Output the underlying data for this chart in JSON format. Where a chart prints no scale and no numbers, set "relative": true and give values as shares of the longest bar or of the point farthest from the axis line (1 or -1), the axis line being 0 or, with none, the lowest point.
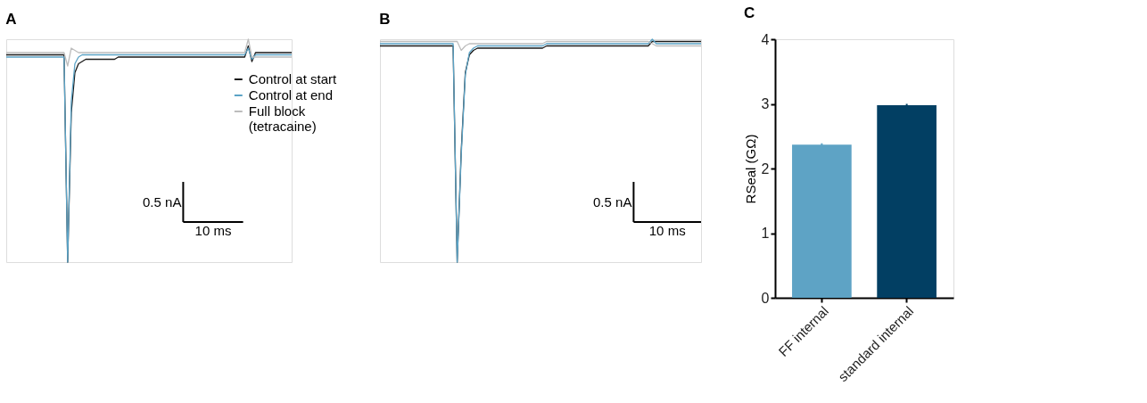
{
  "chart_data": [
    {
      "type": "line",
      "title": "A",
      "relative": true,
      "legend": "right",
      "grid": false,
      "line_style": "solid",
      "marker": "none",
      "categories": [
        null,
        null,
        null,
        null,
        null,
        null,
        null,
        null,
        null,
        null,
        null,
        null,
        null,
        null,
        null,
        null,
        null,
        null,
        null,
        null,
        null,
        null,
        null,
        null,
        null,
        null,
        null,
        null,
        null,
        null,
        null,
        null,
        null,
        null,
        null,
        null,
        null,
        null,
        null,
        null,
        null,
        null,
        null,
        null,
        null,
        null,
        null,
        null,
        null,
        null,
        null,
        null,
        null,
        null,
        null,
        null,
        null,
        null,
        null,
        null,
        null,
        null,
        null,
        null,
        null,
        null,
        null,
        null,
        null,
        null,
        null,
        null,
        null,
        null,
        null,
        null,
        null,
        null,
        null,
        null
      ],
      "series": [
        {
          "name": "Control at start",
          "color": "#1a1a1a",
          "values": [
            0.93,
            0.93,
            0.93,
            0.93,
            0.93,
            0.93,
            0.93,
            0.93,
            0.93,
            0.93,
            0.93,
            0.93,
            0.93,
            0.93,
            0.93,
            0.93,
            0.93,
            0,
            0.67,
            0.85,
            0.89,
            0.9,
            0.91,
            0.91,
            0.91,
            0.91,
            0.91,
            0.91,
            0.91,
            0.91,
            0.91,
            0.92,
            0.92,
            0.92,
            0.92,
            0.92,
            0.92,
            0.92,
            0.92,
            0.92,
            0.92,
            0.92,
            0.92,
            0.92,
            0.92,
            0.92,
            0.92,
            0.92,
            0.92,
            0.92,
            0.92,
            0.92,
            0.92,
            0.92,
            0.92,
            0.92,
            0.92,
            0.92,
            0.92,
            0.92,
            0.92,
            0.92,
            0.92,
            0.92,
            0.92,
            0.92,
            0.92,
            0.97,
            0.9,
            0.94,
            0.94,
            0.94,
            0.94,
            0.94,
            0.94,
            0.94,
            0.94,
            0.94,
            0.94,
            0.94
          ]
        },
        {
          "name": "Control at end",
          "color": "#5ba3c6",
          "values": [
            0.92,
            0.92,
            0.92,
            0.92,
            0.92,
            0.92,
            0.92,
            0.92,
            0.92,
            0.92,
            0.92,
            0.92,
            0.92,
            0.92,
            0.92,
            0.92,
            0.92,
            0,
            0.72,
            0.89,
            0.92,
            0.93,
            0.93,
            0.93,
            0.93,
            0.93,
            0.93,
            0.93,
            0.93,
            0.93,
            0.93,
            0.93,
            0.93,
            0.93,
            0.93,
            0.93,
            0.93,
            0.93,
            0.93,
            0.93,
            0.93,
            0.93,
            0.93,
            0.93,
            0.93,
            0.93,
            0.93,
            0.93,
            0.93,
            0.93,
            0.93,
            0.93,
            0.93,
            0.93,
            0.93,
            0.93,
            0.93,
            0.93,
            0.93,
            0.93,
            0.93,
            0.93,
            0.93,
            0.93,
            0.93,
            0.93,
            0.93,
            0.96,
            0.91,
            0.93,
            0.93,
            0.93,
            0.93,
            0.93,
            0.93,
            0.93,
            0.93,
            0.93,
            0.93,
            0.93
          ]
        },
        {
          "name": "Full block\n(tetracaine)",
          "color": "#bdbdbd",
          "values": [
            0.94,
            0.94,
            0.94,
            0.94,
            0.94,
            0.94,
            0.94,
            0.94,
            0.94,
            0.94,
            0.94,
            0.94,
            0.94,
            0.94,
            0.94,
            0.94,
            0.94,
            0.88,
            0.96,
            0.95,
            0.94,
            0.94,
            0.94,
            0.94,
            0.94,
            0.94,
            0.94,
            0.94,
            0.94,
            0.94,
            0.94,
            0.94,
            0.94,
            0.94,
            0.94,
            0.94,
            0.94,
            0.94,
            0.94,
            0.94,
            0.94,
            0.94,
            0.94,
            0.94,
            0.94,
            0.94,
            0.94,
            0.94,
            0.94,
            0.94,
            0.94,
            0.94,
            0.94,
            0.94,
            0.94,
            0.94,
            0.94,
            0.94,
            0.94,
            0.94,
            0.94,
            0.94,
            0.94,
            0.94,
            0.94,
            0.94,
            0.94,
            1,
            0.92,
            0.92,
            0.92,
            0.92,
            0.92,
            0.92,
            0.92,
            0.92,
            0.92,
            0.92,
            0.92,
            0.92
          ]
        }
      ],
      "annotations": [
        "0.5 nA",
        "10 ms"
      ]
    },
    {
      "type": "line",
      "title": "B",
      "relative": true,
      "grid": false,
      "line_style": "solid",
      "marker": "none",
      "categories": [
        null,
        null,
        null,
        null,
        null,
        null,
        null,
        null,
        null,
        null,
        null,
        null,
        null,
        null,
        null,
        null,
        null,
        null,
        null,
        null,
        null,
        null,
        null,
        null,
        null,
        null,
        null,
        null,
        null,
        null,
        null,
        null,
        null,
        null,
        null,
        null,
        null,
        null,
        null,
        null,
        null,
        null,
        null,
        null,
        null,
        null,
        null,
        null,
        null,
        null,
        null,
        null,
        null,
        null,
        null,
        null,
        null,
        null,
        null,
        null,
        null,
        null,
        null,
        null,
        null,
        null,
        null,
        null,
        null,
        null,
        null,
        null,
        null,
        null,
        null,
        null,
        null,
        null,
        null,
        null
      ],
      "series": [
        {
          "color": "#1a1a1a",
          "values": [
            0.97,
            0.97,
            0.97,
            0.97,
            0.97,
            0.97,
            0.97,
            0.97,
            0.97,
            0.97,
            0.97,
            0.97,
            0.97,
            0.97,
            0.97,
            0.97,
            0.97,
            0.97,
            0.97,
            0,
            0.5,
            0.85,
            0.93,
            0.95,
            0.96,
            0.96,
            0.96,
            0.96,
            0.96,
            0.96,
            0.96,
            0.96,
            0.96,
            0.96,
            0.96,
            0.96,
            0.96,
            0.96,
            0.96,
            0.96,
            0.96,
            0.97,
            0.97,
            0.97,
            0.97,
            0.97,
            0.97,
            0.97,
            0.97,
            0.97,
            0.97,
            0.97,
            0.97,
            0.97,
            0.97,
            0.97,
            0.97,
            0.97,
            0.97,
            0.97,
            0.97,
            0.97,
            0.97,
            0.97,
            0.97,
            0.97,
            0.97,
            0.99,
            0.99,
            0.99,
            0.99,
            0.99,
            0.99,
            0.99,
            0.99,
            0.99,
            0.99,
            0.99,
            0.99,
            0.99
          ]
        },
        {
          "color": "#5ba3c6",
          "values": [
            0.98,
            0.98,
            0.98,
            0.98,
            0.98,
            0.98,
            0.98,
            0.98,
            0.98,
            0.98,
            0.98,
            0.98,
            0.98,
            0.98,
            0.98,
            0.98,
            0.98,
            0.98,
            0.98,
            0,
            0.48,
            0.84,
            0.94,
            0.96,
            0.97,
            0.97,
            0.97,
            0.97,
            0.97,
            0.97,
            0.97,
            0.97,
            0.97,
            0.97,
            0.97,
            0.97,
            0.97,
            0.97,
            0.97,
            0.97,
            0.97,
            0.98,
            0.98,
            0.98,
            0.98,
            0.98,
            0.98,
            0.98,
            0.98,
            0.98,
            0.98,
            0.98,
            0.98,
            0.98,
            0.98,
            0.98,
            0.98,
            0.98,
            0.98,
            0.98,
            0.98,
            0.98,
            0.98,
            0.98,
            0.98,
            0.98,
            0.98,
            1,
            0.98,
            0.98,
            0.98,
            0.98,
            0.98,
            0.98,
            0.98,
            0.98,
            0.98,
            0.98,
            0.98,
            0.98
          ]
        },
        {
          "color": "#bdbdbd",
          "values": [
            0.99,
            0.99,
            0.99,
            0.99,
            0.99,
            0.99,
            0.99,
            0.99,
            0.99,
            0.99,
            0.99,
            0.99,
            0.99,
            0.99,
            0.99,
            0.99,
            0.99,
            0.99,
            0.99,
            0.99,
            0.95,
            0.97,
            0.98,
            0.98,
            0.98,
            0.98,
            0.98,
            0.98,
            0.98,
            0.98,
            0.98,
            0.98,
            0.98,
            0.98,
            0.98,
            0.98,
            0.98,
            0.98,
            0.98,
            0.98,
            0.98,
            0.99,
            0.99,
            0.99,
            0.99,
            0.99,
            0.99,
            0.99,
            0.99,
            0.99,
            0.99,
            0.99,
            0.99,
            0.99,
            0.99,
            0.99,
            0.99,
            0.99,
            0.99,
            0.99,
            0.99,
            0.99,
            0.99,
            0.99,
            0.99,
            0.99,
            0.99,
            0.98,
            0.97,
            0.97,
            0.97,
            0.97,
            0.97,
            0.97,
            0.97,
            0.97,
            0.97,
            0.97,
            0.97,
            0.97
          ]
        }
      ],
      "annotations": [
        "0.5 nA",
        "10 ms"
      ]
    },
    {
      "type": "bar",
      "title": "C",
      "ylabel": "RSeal (GΩ)",
      "grid": false,
      "categories": [
        "FF internal",
        "standard internal"
      ],
      "values": [
        2.37,
        2.98
      ],
      "errors": [
        0.02,
        0.02
      ],
      "colors": [
        "#5ea3c5",
        "#023f63"
      ],
      "ylim": [
        0,
        4
      ],
      "yticks": [
        0,
        1,
        2,
        3,
        4
      ]
    }
  ]
}
